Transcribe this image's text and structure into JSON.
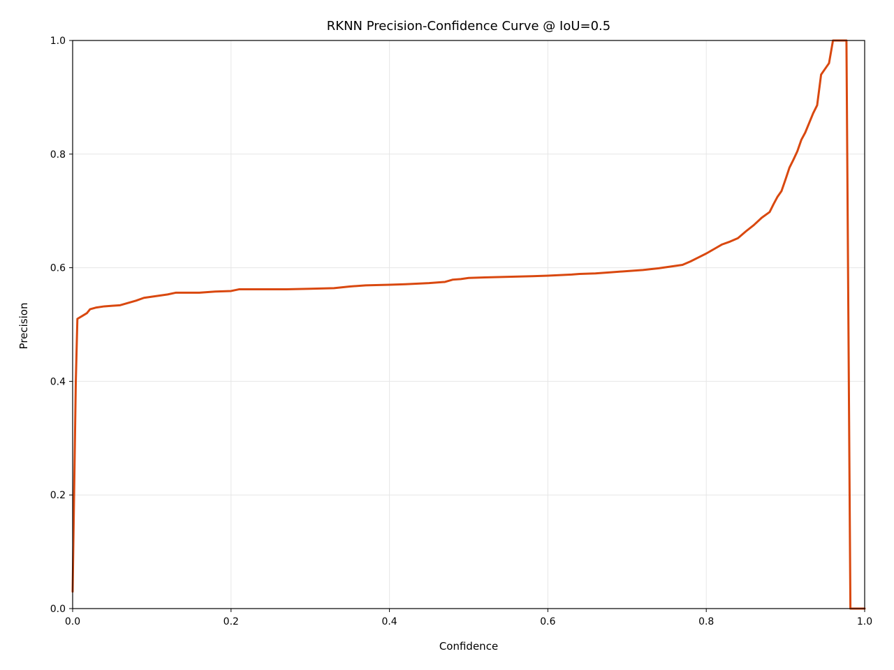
{
  "chart_data": {
    "type": "line",
    "title": "RKNN Precision-Confidence Curve @ IoU=0.5",
    "xlabel": "Confidence",
    "ylabel": "Precision",
    "xlim": [
      0.0,
      1.0
    ],
    "ylim": [
      0.0,
      1.0
    ],
    "xticks": [
      "0.0",
      "0.2",
      "0.4",
      "0.6",
      "0.8",
      "1.0"
    ],
    "yticks": [
      "0.0",
      "0.2",
      "0.4",
      "0.6",
      "0.8",
      "1.0"
    ],
    "grid": true,
    "line_color": "#d9480f",
    "series": [
      {
        "x": [
          0.0,
          0.004,
          0.006,
          0.012,
          0.018,
          0.022,
          0.03,
          0.04,
          0.05,
          0.06,
          0.07,
          0.08,
          0.09,
          0.1,
          0.11,
          0.12,
          0.13,
          0.14,
          0.16,
          0.18,
          0.2,
          0.21,
          0.22,
          0.25,
          0.27,
          0.3,
          0.33,
          0.35,
          0.37,
          0.4,
          0.42,
          0.45,
          0.47,
          0.48,
          0.49,
          0.5,
          0.52,
          0.55,
          0.58,
          0.6,
          0.63,
          0.64,
          0.66,
          0.68,
          0.7,
          0.72,
          0.74,
          0.75,
          0.77,
          0.78,
          0.79,
          0.8,
          0.81,
          0.82,
          0.83,
          0.84,
          0.85,
          0.86,
          0.87,
          0.88,
          0.885,
          0.89,
          0.895,
          0.9,
          0.905,
          0.91,
          0.915,
          0.92,
          0.925,
          0.93,
          0.935,
          0.94,
          0.945,
          0.95,
          0.955,
          0.96,
          0.965,
          0.97,
          0.977,
          0.982,
          0.99,
          1.0
        ],
        "y": [
          0.03,
          0.4,
          0.51,
          0.515,
          0.52,
          0.527,
          0.53,
          0.532,
          0.533,
          0.534,
          0.538,
          0.542,
          0.547,
          0.549,
          0.551,
          0.553,
          0.556,
          0.556,
          0.556,
          0.558,
          0.559,
          0.562,
          0.562,
          0.562,
          0.562,
          0.563,
          0.564,
          0.567,
          0.569,
          0.57,
          0.571,
          0.573,
          0.575,
          0.579,
          0.58,
          0.582,
          0.583,
          0.584,
          0.585,
          0.586,
          0.588,
          0.589,
          0.59,
          0.592,
          0.594,
          0.596,
          0.599,
          0.601,
          0.605,
          0.611,
          0.618,
          0.625,
          0.633,
          0.641,
          0.646,
          0.652,
          0.664,
          0.675,
          0.688,
          0.698,
          0.712,
          0.725,
          0.735,
          0.755,
          0.776,
          0.79,
          0.805,
          0.825,
          0.838,
          0.855,
          0.872,
          0.886,
          0.94,
          0.95,
          0.96,
          1.0,
          1.0,
          1.0,
          1.0,
          0.0,
          0.0,
          0.0
        ]
      }
    ]
  }
}
